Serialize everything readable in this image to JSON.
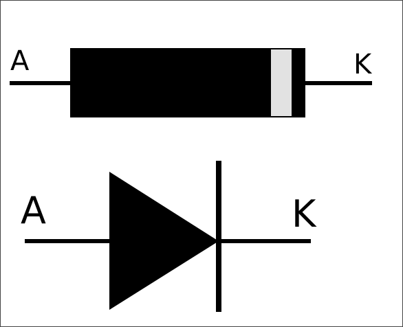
{
  "package_diagram": {
    "anode_label": "A",
    "cathode_label": "K"
  },
  "symbol_diagram": {
    "anode_label": "A",
    "cathode_label": "K"
  },
  "colors": {
    "body": "#000000",
    "cathode_band": "#e2e2e2",
    "frame": "#444444",
    "background": "#ffffff"
  }
}
